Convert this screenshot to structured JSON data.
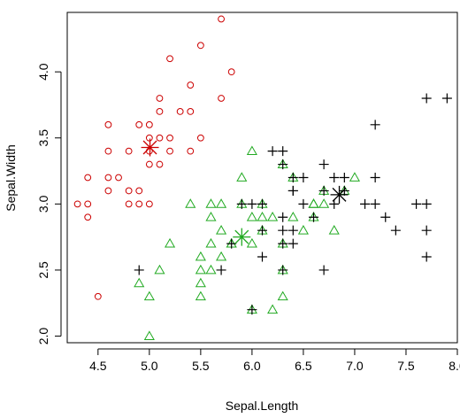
{
  "chart_data": {
    "type": "scatter",
    "xlabel": "Sepal.Length",
    "ylabel": "Sepal.Width",
    "xlim": [
      4.2,
      8.0
    ],
    "ylim": [
      1.95,
      4.45
    ],
    "x_ticks": [
      4.5,
      5.0,
      5.5,
      6.0,
      6.5,
      7.0,
      7.5,
      8.0
    ],
    "x_tick_labels": [
      "4.5",
      "5.0",
      "5.5",
      "6.0",
      "6.5",
      "7.0",
      "7.5",
      "8.0"
    ],
    "y_ticks": [
      2.0,
      2.5,
      3.0,
      3.5,
      4.0
    ],
    "y_tick_labels": [
      "2.0",
      "2.5",
      "3.0",
      "3.5",
      "4.0"
    ],
    "grid": false,
    "series": [
      {
        "marker": "circle",
        "color": "#cc0000",
        "points": [
          [
            5.8,
            4.0
          ],
          [
            5.7,
            4.4
          ],
          [
            5.2,
            4.1
          ],
          [
            5.5,
            4.2
          ],
          [
            5.7,
            3.8
          ],
          [
            5.4,
            3.9
          ],
          [
            5.1,
            3.8
          ],
          [
            5.3,
            3.7
          ],
          [
            5.1,
            3.7
          ],
          [
            5.2,
            3.5
          ],
          [
            4.6,
            3.6
          ],
          [
            5.4,
            3.7
          ],
          [
            5.4,
            3.4
          ],
          [
            5.5,
            3.5
          ],
          [
            5.0,
            3.6
          ],
          [
            5.1,
            3.5
          ],
          [
            4.9,
            3.6
          ],
          [
            4.6,
            3.4
          ],
          [
            4.8,
            3.4
          ],
          [
            5.0,
            3.5
          ],
          [
            5.0,
            3.4
          ],
          [
            5.2,
            3.4
          ],
          [
            5.1,
            3.3
          ],
          [
            4.7,
            3.2
          ],
          [
            4.6,
            3.1
          ],
          [
            4.9,
            3.1
          ],
          [
            5.0,
            3.3
          ],
          [
            4.4,
            3.2
          ],
          [
            4.9,
            3.0
          ],
          [
            4.8,
            3.0
          ],
          [
            4.8,
            3.1
          ],
          [
            4.6,
            3.2
          ],
          [
            4.4,
            3.0
          ],
          [
            4.3,
            3.0
          ],
          [
            4.4,
            2.9
          ],
          [
            5.0,
            3.0
          ],
          [
            4.5,
            2.3
          ]
        ]
      },
      {
        "marker": "triangle",
        "color": "#22aa22",
        "points": [
          [
            6.0,
            3.4
          ],
          [
            6.3,
            3.3
          ],
          [
            5.9,
            3.2
          ],
          [
            6.4,
            3.2
          ],
          [
            7.0,
            3.2
          ],
          [
            6.9,
            3.1
          ],
          [
            6.7,
            3.1
          ],
          [
            5.4,
            3.0
          ],
          [
            5.6,
            3.0
          ],
          [
            5.7,
            3.0
          ],
          [
            5.9,
            3.0
          ],
          [
            6.6,
            3.0
          ],
          [
            6.7,
            3.0
          ],
          [
            5.6,
            2.9
          ],
          [
            6.0,
            2.9
          ],
          [
            6.1,
            2.9
          ],
          [
            6.2,
            2.9
          ],
          [
            6.4,
            2.9
          ],
          [
            6.6,
            2.9
          ],
          [
            5.7,
            2.8
          ],
          [
            6.1,
            2.8
          ],
          [
            6.5,
            2.8
          ],
          [
            6.8,
            2.8
          ],
          [
            5.8,
            2.7
          ],
          [
            6.0,
            2.7
          ],
          [
            5.2,
            2.7
          ],
          [
            5.6,
            2.7
          ],
          [
            5.5,
            2.6
          ],
          [
            5.7,
            2.6
          ],
          [
            5.8,
            2.7
          ],
          [
            5.6,
            2.5
          ],
          [
            5.5,
            2.5
          ],
          [
            5.1,
            2.5
          ],
          [
            4.9,
            2.4
          ],
          [
            5.5,
            2.4
          ],
          [
            5.0,
            2.3
          ],
          [
            5.5,
            2.3
          ],
          [
            6.3,
            2.3
          ],
          [
            6.0,
            2.2
          ],
          [
            6.2,
            2.2
          ],
          [
            5.0,
            2.0
          ],
          [
            6.3,
            2.5
          ],
          [
            6.3,
            2.7
          ],
          [
            6.6,
            3.0
          ],
          [
            6.1,
            3.0
          ]
        ]
      },
      {
        "marker": "plus",
        "color": "#000000",
        "points": [
          [
            7.7,
            3.8
          ],
          [
            7.9,
            3.8
          ],
          [
            7.2,
            3.6
          ],
          [
            6.2,
            3.4
          ],
          [
            6.3,
            3.4
          ],
          [
            6.3,
            3.3
          ],
          [
            6.7,
            3.3
          ],
          [
            6.4,
            3.2
          ],
          [
            6.5,
            3.2
          ],
          [
            6.8,
            3.2
          ],
          [
            6.9,
            3.2
          ],
          [
            7.2,
            3.2
          ],
          [
            6.4,
            3.1
          ],
          [
            6.7,
            3.1
          ],
          [
            6.9,
            3.1
          ],
          [
            7.1,
            3.0
          ],
          [
            7.2,
            3.0
          ],
          [
            7.6,
            3.0
          ],
          [
            7.7,
            3.0
          ],
          [
            6.5,
            3.0
          ],
          [
            6.8,
            3.0
          ],
          [
            6.1,
            3.0
          ],
          [
            6.3,
            2.9
          ],
          [
            7.3,
            2.9
          ],
          [
            6.4,
            2.8
          ],
          [
            7.7,
            2.8
          ],
          [
            7.4,
            2.8
          ],
          [
            6.3,
            2.8
          ],
          [
            6.4,
            2.7
          ],
          [
            6.3,
            2.7
          ],
          [
            5.8,
            2.7
          ],
          [
            7.7,
            2.6
          ],
          [
            6.1,
            2.6
          ],
          [
            6.3,
            2.5
          ],
          [
            6.7,
            2.5
          ],
          [
            4.9,
            2.5
          ],
          [
            5.7,
            2.5
          ],
          [
            6.0,
            2.2
          ],
          [
            6.0,
            3.0
          ],
          [
            6.1,
            2.8
          ],
          [
            6.4,
            3.1
          ],
          [
            5.9,
            3.0
          ],
          [
            6.6,
            2.9
          ]
        ]
      }
    ],
    "centroids": [
      {
        "x": 5.006,
        "y": 3.428,
        "color": "#cc0000"
      },
      {
        "x": 5.9,
        "y": 2.75,
        "color": "#22aa22"
      },
      {
        "x": 6.85,
        "y": 3.07,
        "color": "#000000"
      }
    ]
  }
}
